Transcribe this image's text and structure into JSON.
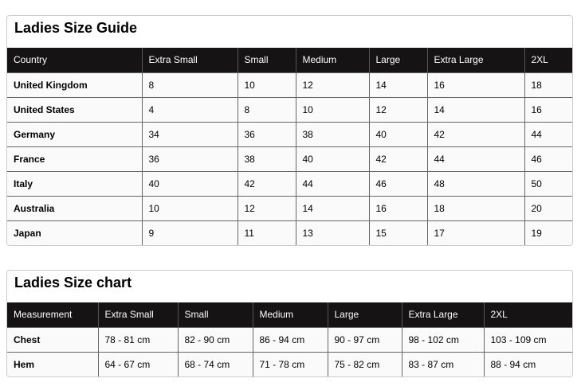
{
  "guide": {
    "title": "Ladies Size Guide",
    "headers": [
      "Country",
      "Extra Small",
      "Small",
      "Medium",
      "Large",
      "Extra Large",
      "2XL"
    ],
    "rows": [
      [
        "United Kingdom",
        "8",
        "10",
        "12",
        "14",
        "16",
        "18"
      ],
      [
        "United States",
        "4",
        "8",
        "10",
        "12",
        "14",
        "16"
      ],
      [
        "Germany",
        "34",
        "36",
        "38",
        "40",
        "42",
        "44"
      ],
      [
        "France",
        "36",
        "38",
        "40",
        "42",
        "44",
        "46"
      ],
      [
        "Italy",
        "40",
        "42",
        "44",
        "46",
        "48",
        "50"
      ],
      [
        "Australia",
        "10",
        "12",
        "14",
        "16",
        "18",
        "20"
      ],
      [
        "Japan",
        "9",
        "11",
        "13",
        "15",
        "17",
        "19"
      ]
    ]
  },
  "chart": {
    "title": "Ladies Size chart",
    "headers": [
      "Measurement",
      "Extra Small",
      "Small",
      "Medium",
      "Large",
      "Extra Large",
      "2XL"
    ],
    "rows": [
      [
        "Chest",
        "78 - 81 cm",
        "82 - 90 cm",
        "86 - 94 cm",
        "90 - 97 cm",
        "98 - 102 cm",
        "103 - 109 cm"
      ],
      [
        "Hem",
        "64 - 67 cm",
        "68 - 74 cm",
        "71 - 78 cm",
        "75 - 82 cm",
        "83 - 87 cm",
        "88 - 94 cm"
      ]
    ]
  }
}
